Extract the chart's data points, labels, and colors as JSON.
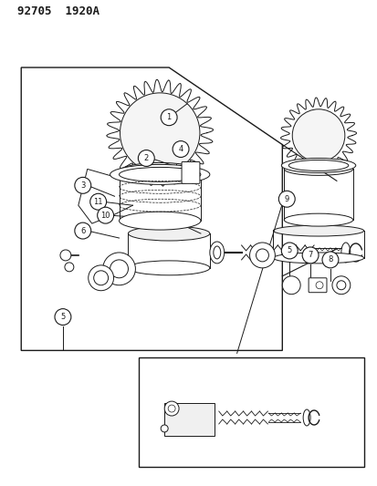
{
  "title": "92705  1920A",
  "bg_color": "#ffffff",
  "line_color": "#1a1a1a",
  "fig_width": 4.14,
  "fig_height": 5.33,
  "dpi": 100
}
